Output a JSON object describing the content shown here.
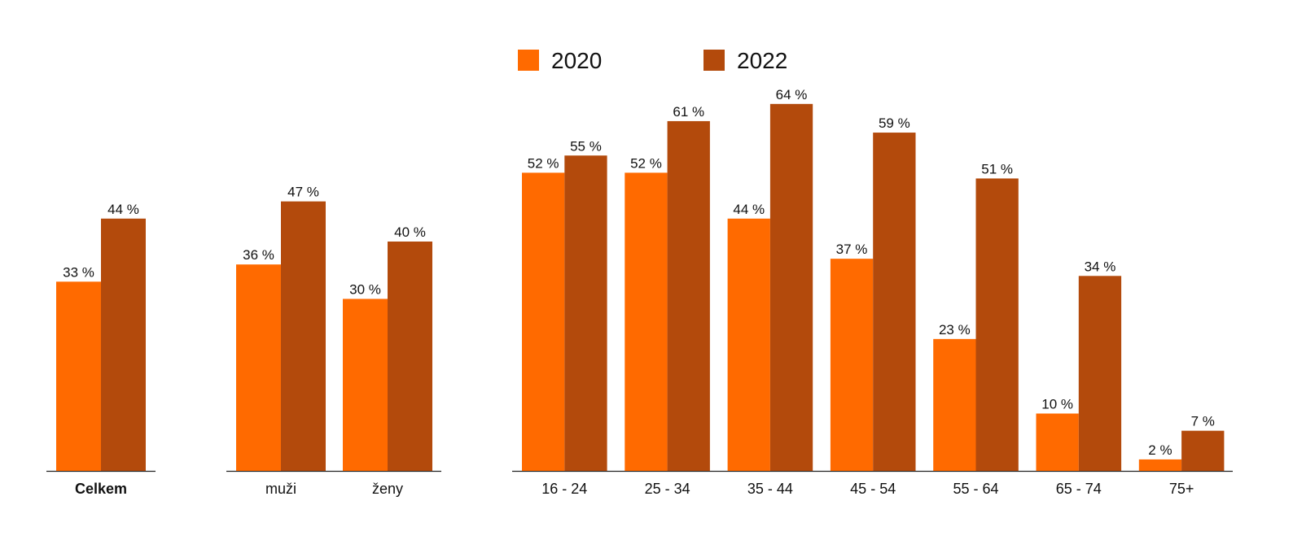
{
  "chart_data": {
    "type": "bar",
    "legend": {
      "placement": "top-center",
      "entries": [
        {
          "name": "2020",
          "color": "#ff6a00"
        },
        {
          "name": "2022",
          "color": "#b34a0c"
        }
      ]
    },
    "series": [
      {
        "name": "2020",
        "color": "#ff6a00"
      },
      {
        "name": "2022",
        "color": "#b34a0c"
      }
    ],
    "ylim": [
      0,
      70
    ],
    "grid": false,
    "groups": [
      {
        "categories": [
          {
            "label": "Celkem",
            "bold": true,
            "values": [
              33,
              44
            ],
            "labels": [
              "33 %",
              "44 %"
            ]
          }
        ]
      },
      {
        "categories": [
          {
            "label": "muži",
            "values": [
              36,
              47
            ],
            "labels": [
              "36 %",
              "47 %"
            ]
          },
          {
            "label": "ženy",
            "values": [
              30,
              40
            ],
            "labels": [
              "30 %",
              "40 %"
            ]
          }
        ]
      },
      {
        "categories": [
          {
            "label": "16 - 24",
            "values": [
              52,
              55
            ],
            "labels": [
              "52 %",
              "55 %"
            ]
          },
          {
            "label": "25 - 34",
            "values": [
              52,
              61
            ],
            "labels": [
              "52 %",
              "61 %"
            ]
          },
          {
            "label": "35 - 44",
            "values": [
              44,
              64
            ],
            "labels": [
              "44 %",
              "64 %"
            ]
          },
          {
            "label": "45 - 54",
            "values": [
              37,
              59
            ],
            "labels": [
              "37 %",
              "59 %"
            ]
          },
          {
            "label": "55 - 64",
            "values": [
              23,
              51
            ],
            "labels": [
              "23 %",
              "51 %"
            ]
          },
          {
            "label": "65 - 74",
            "values": [
              10,
              34
            ],
            "labels": [
              "10 %",
              "34 %"
            ]
          },
          {
            "label": "75+",
            "values": [
              2,
              7
            ],
            "labels": [
              "2 %",
              "7 %"
            ]
          }
        ]
      }
    ]
  }
}
